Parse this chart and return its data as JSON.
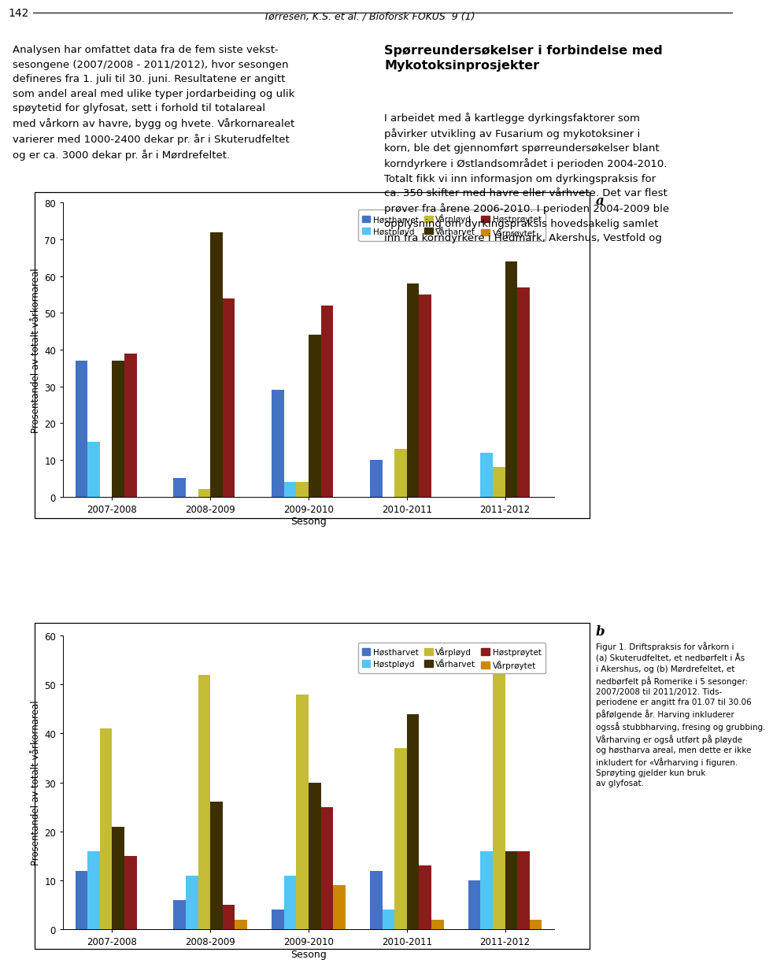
{
  "header": {
    "page_num": "142",
    "title_line": "Tørresen, K.S. et al. / Bioforsk FOKUS  9 (1)",
    "left_text": "Analysen har omfattet data fra de fem siste vekst-\nsesongene (2007/2008 - 2011/2012), hvor sesongen\ndefineres fra 1. juli til 30. juni. Resultatene er angitt\nsom andel areal med ulike typer jordarbeiding og ulik\nspøytetid for glyfosat, sett i forhold til totalareal\nmed vårkorn av havre, bygg og hvete. Vårkornarealet\nvarierer med 1000-2400 dekar pr. år i Skuterudfeltet\nog er ca. 3000 dekar pr. år i Mørdrefeltet.",
    "right_heading": "Spørreundersøkelser i forbindelse med\nMykotoksinprosjekter",
    "right_text": "I arbeidet med å kartlegge dyrkingsfaktorer som\npåvirker utvikling av Fusarium og mykotoksiner i\nkorn, ble det gjennomført spørreundersøkelser blant\nkorndyrkere i Østlandsområdet i perioden 2004-2010.\nTotalt fikk vi inn informasjon om dyrkingspraksis for\nca. 350 skifter med havre eller vårhvete. Det var flest\nprøver fra årene 2006-2010. I perioden 2004-2009 ble\nopplysning om dyrkingspraksis hovedsakelig samlet\ninn fra korndyrkere i Hedmark, Akershus, Vestfold og"
  },
  "chart_a": {
    "ylabel": "Prosentandel av totalt vårkornareal",
    "xlabel": "Sesong",
    "ylim": [
      0,
      80
    ],
    "yticks": [
      0,
      10,
      20,
      30,
      40,
      50,
      60,
      70,
      80
    ],
    "categories": [
      "2007-2008",
      "2008-2009",
      "2009-2010",
      "2010-2011",
      "2011-2012"
    ],
    "series_names": [
      "Høstharvet",
      "Høstpløyd",
      "Vårpløyd",
      "Vårharvet",
      "Høstprøytet",
      "Vårprøytet"
    ],
    "series_values": [
      [
        37,
        5,
        29,
        10,
        0
      ],
      [
        15,
        0,
        4,
        0,
        12
      ],
      [
        0,
        2,
        4,
        13,
        8
      ],
      [
        37,
        72,
        44,
        58,
        64
      ],
      [
        39,
        54,
        52,
        55,
        57
      ],
      [
        0,
        0,
        0,
        0,
        0
      ]
    ],
    "colors": [
      "#4472C4",
      "#52C5F5",
      "#C4BC34",
      "#3D2F00",
      "#8B1C1C",
      "#CC8800"
    ],
    "label": "a"
  },
  "chart_b": {
    "ylabel": "Prosentandel av totalt vårkornareal",
    "xlabel": "Sesong",
    "ylim": [
      0,
      60
    ],
    "yticks": [
      0,
      10,
      20,
      30,
      40,
      50,
      60
    ],
    "categories": [
      "2007-2008",
      "2008-2009",
      "2009-2010",
      "2010-2011",
      "2011-2012"
    ],
    "series_names": [
      "Høstharvet",
      "Høstpløyd",
      "Vårpløyd",
      "Vårharvet",
      "Høstprøytet",
      "Vårprøytet"
    ],
    "series_values": [
      [
        12,
        6,
        4,
        12,
        10
      ],
      [
        16,
        11,
        11,
        4,
        16
      ],
      [
        41,
        52,
        48,
        37,
        57
      ],
      [
        21,
        26,
        30,
        44,
        16
      ],
      [
        15,
        5,
        25,
        13,
        16
      ],
      [
        0,
        2,
        9,
        2,
        2
      ]
    ],
    "colors": [
      "#4472C4",
      "#52C5F5",
      "#C4BC34",
      "#3D2F00",
      "#8B1C1C",
      "#CC8800"
    ],
    "label": "b"
  },
  "figure_caption": "Figur 1. Driftspraksis for vårkorn i\n(a) Skuterudfeltet, et nedbørfelt i Ås\ni Akershus, og (b) Mørdrefeltet, et\nnedbørfelt på Romerike i 5 sesonger:\n2007/2008 til 2011/2012. Tids-\nperiodene er angitt fra 01.07 til 30.06\npåfølgende år. Harving inkluderer\nogsså stubbharving, fresing og grubbing.\nVårharving er også utført på pløyde\nog høstharva areal, men dette er ikke\ninkludert for «Vårharving i figuren.\nSprøyting gjelder kun bruk\nav glyfosat."
}
